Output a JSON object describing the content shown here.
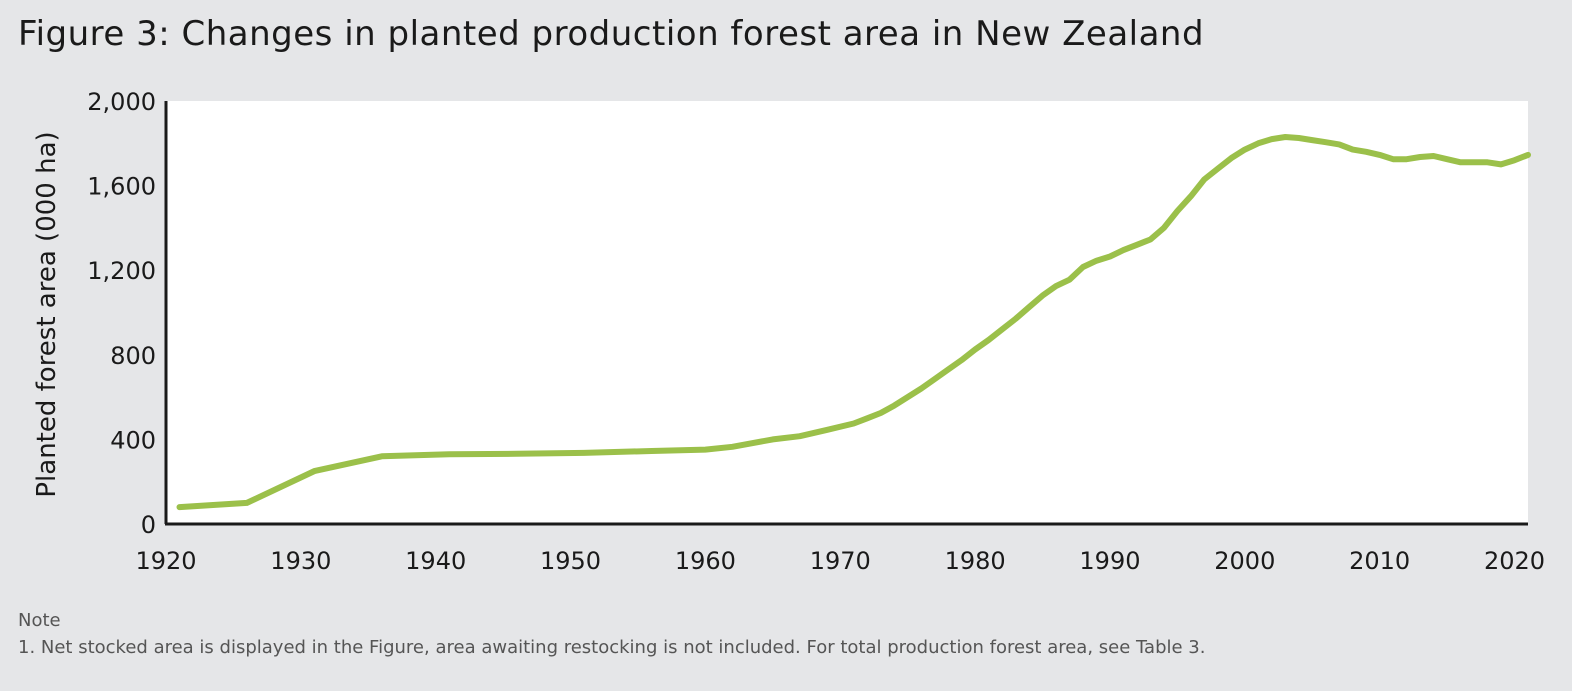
{
  "page": {
    "title": "Figure 3: Changes in planted production forest area in New Zealand",
    "note_label": "Note",
    "note_text": "1. Net stocked area is displayed in the Figure, area awaiting restocking is not included. For total production forest area, see Table 3."
  },
  "colors": {
    "background": "#e5e6e8",
    "plot_background": "#ffffff",
    "line": "#9bc04a",
    "axis": "#1a1a1a"
  },
  "chart_data": {
    "type": "line",
    "title": "Figure 3: Changes in planted production forest area in New Zealand",
    "xlabel": "",
    "ylabel": "Planted forest area (000 ha)",
    "xlim": [
      1920,
      2021
    ],
    "ylim": [
      0,
      2000
    ],
    "x_ticks": [
      1920,
      1930,
      1940,
      1950,
      1960,
      1970,
      1980,
      1990,
      2000,
      2010,
      2020
    ],
    "x_tick_labels": [
      "1920",
      "1930",
      "1940",
      "1950",
      "1960",
      "1970",
      "1980",
      "1990",
      "2000",
      "2010",
      "2020"
    ],
    "y_ticks": [
      0,
      400,
      800,
      1200,
      1600,
      2000
    ],
    "y_tick_labels": [
      "0",
      "400",
      "800",
      "1,200",
      "1,600",
      "2,000"
    ],
    "grid": false,
    "series": [
      {
        "x": [
          1921,
          1926,
          1931,
          1936,
          1941,
          1946,
          1951,
          1956,
          1960,
          1962,
          1965,
          1967,
          1969,
          1971,
          1972,
          1973,
          1974,
          1975,
          1976,
          1977,
          1978,
          1979,
          1980,
          1981,
          1982,
          1983,
          1984,
          1985,
          1986,
          1987,
          1988,
          1989,
          1990,
          1991,
          1992,
          1993,
          1994,
          1995,
          1996,
          1997,
          1998,
          1999,
          2000,
          2001,
          2002,
          2003,
          2004,
          2005,
          2006,
          2007,
          2008,
          2009,
          2010,
          2011,
          2012,
          2013,
          2014,
          2015,
          2016,
          2017,
          2018,
          2019,
          2020,
          2021
        ],
        "values": [
          80,
          100,
          250,
          320,
          330,
          332,
          336,
          345,
          352,
          365,
          400,
          415,
          445,
          475,
          500,
          525,
          560,
          600,
          640,
          685,
          730,
          775,
          825,
          870,
          920,
          970,
          1025,
          1080,
          1125,
          1155,
          1215,
          1245,
          1265,
          1295,
          1320,
          1345,
          1400,
          1480,
          1550,
          1630,
          1680,
          1730,
          1770,
          1800,
          1820,
          1830,
          1825,
          1815,
          1805,
          1795,
          1770,
          1760,
          1745,
          1725,
          1725,
          1735,
          1740,
          1725,
          1710,
          1710,
          1710,
          1700,
          1720,
          1745
        ]
      }
    ]
  }
}
